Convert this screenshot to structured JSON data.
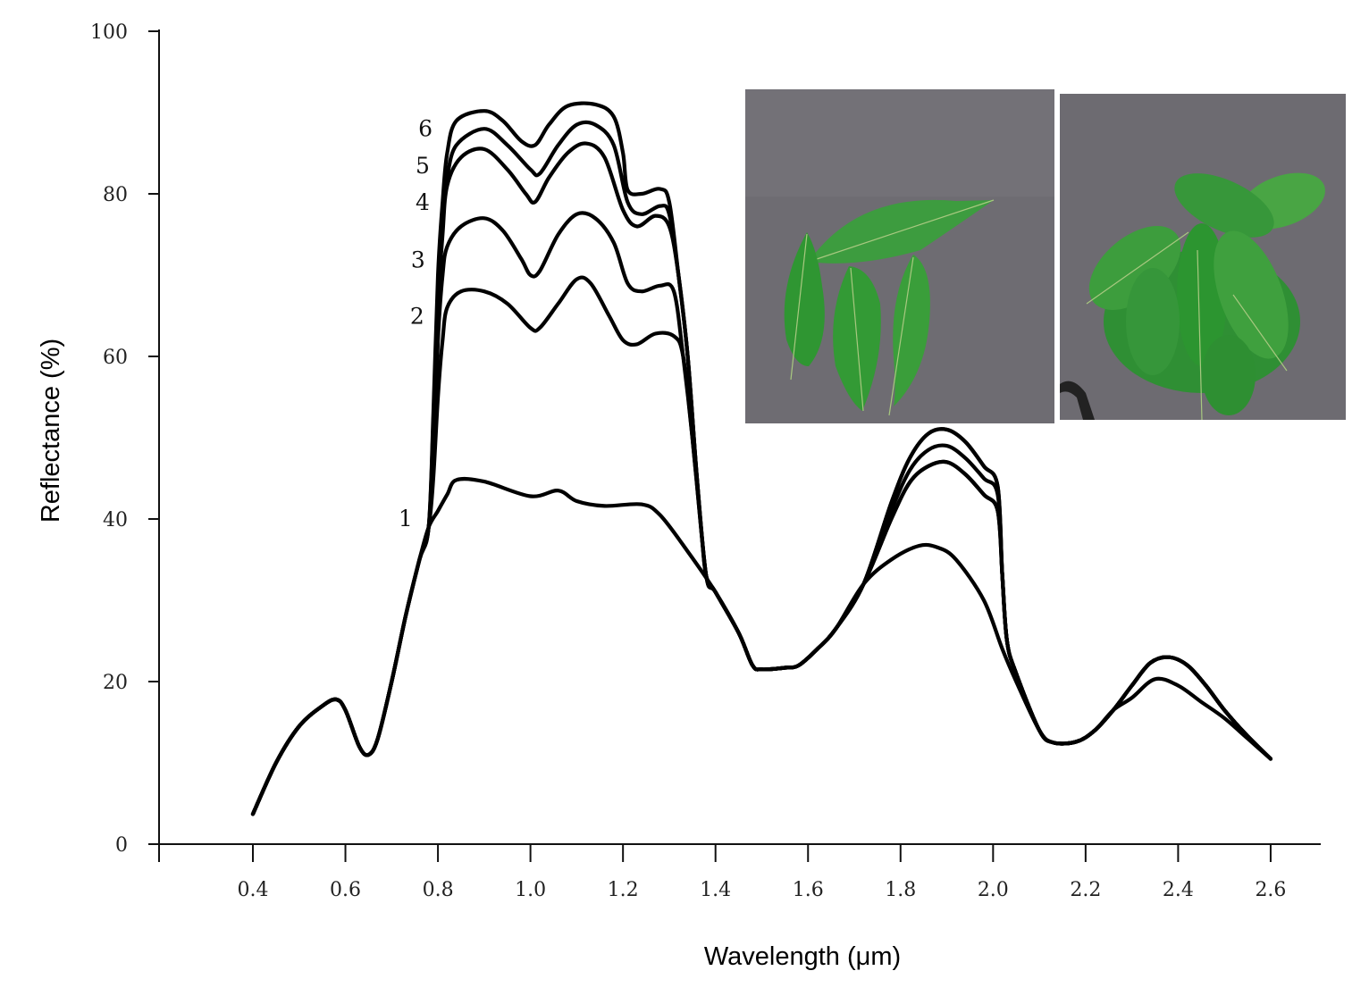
{
  "chart_data": {
    "type": "line",
    "title": "",
    "xlabel": "Wavelength (μm)",
    "ylabel": "Reflectance (%)",
    "xlim": [
      0.2,
      2.7
    ],
    "ylim": [
      0,
      100
    ],
    "x_ticks": [
      0.4,
      0.6,
      0.8,
      1.0,
      1.2,
      1.4,
      1.6,
      1.8,
      2.0,
      2.2,
      2.4,
      2.6
    ],
    "x_tick_labels": [
      "0.4",
      "0.6",
      "0.8",
      "1.0",
      "1.2",
      "1.4",
      "1.6",
      "1.8",
      "2.0",
      "2.2",
      "2.4",
      "2.6"
    ],
    "y_ticks": [
      0,
      20,
      40,
      60,
      80,
      100
    ],
    "y_tick_labels": [
      "0",
      "20",
      "40",
      "60",
      "80",
      "100"
    ],
    "grid": false,
    "legend": "none",
    "line_color": "#000000",
    "segments": {
      "start": [
        [
          0.4,
          3.7
        ],
        [
          0.45,
          10
        ],
        [
          0.5,
          14.5
        ],
        [
          0.55,
          17
        ],
        [
          0.58,
          17.8
        ],
        [
          0.6,
          16.5
        ],
        [
          0.63,
          12
        ],
        [
          0.65,
          11
        ],
        [
          0.67,
          13
        ],
        [
          0.7,
          20
        ],
        [
          0.73,
          28
        ],
        [
          0.76,
          35
        ],
        [
          0.78,
          39
        ]
      ],
      "mid": [
        [
          1.4,
          31
        ],
        [
          1.45,
          26
        ],
        [
          1.48,
          22
        ],
        [
          1.5,
          21.5
        ],
        [
          1.55,
          21.7
        ],
        [
          1.58,
          22
        ],
        [
          1.62,
          24
        ],
        [
          1.66,
          26.5
        ],
        [
          1.72,
          32
        ]
      ],
      "tail_shared": [
        [
          2.1,
          14
        ],
        [
          2.13,
          12.5
        ],
        [
          2.18,
          12.6
        ],
        [
          2.22,
          14
        ],
        [
          2.26,
          16.5
        ]
      ],
      "tail_low": [
        [
          2.3,
          18
        ],
        [
          2.35,
          20.3
        ],
        [
          2.4,
          19.5
        ],
        [
          2.45,
          17.5
        ],
        [
          2.5,
          15.5
        ],
        [
          2.55,
          13
        ],
        [
          2.6,
          10.5
        ]
      ],
      "tail_high": [
        [
          2.3,
          19.5
        ],
        [
          2.34,
          22.3
        ],
        [
          2.38,
          23
        ],
        [
          2.42,
          22
        ],
        [
          2.46,
          19.5
        ],
        [
          2.5,
          16.5
        ],
        [
          2.55,
          13.3
        ],
        [
          2.6,
          10.5
        ]
      ]
    },
    "series": [
      {
        "name": "1",
        "label_at": [
          0.73,
          40.1
        ],
        "tail": "tail_low",
        "nir": [
          [
            0.8,
            41
          ],
          [
            0.82,
            43
          ],
          [
            0.84,
            44.8
          ],
          [
            0.9,
            44.6
          ],
          [
            1.0,
            42.8
          ],
          [
            1.06,
            43.5
          ],
          [
            1.1,
            42.2
          ],
          [
            1.16,
            41.6
          ],
          [
            1.24,
            41.8
          ],
          [
            1.28,
            40.5
          ],
          [
            1.34,
            36
          ]
        ],
        "band2": [
          [
            1.78,
            35
          ],
          [
            1.84,
            36.7
          ],
          [
            1.88,
            36.5
          ],
          [
            1.92,
            35
          ],
          [
            1.98,
            30
          ],
          [
            2.02,
            24
          ],
          [
            2.05,
            20
          ]
        ]
      },
      {
        "name": "2",
        "label_at": [
          0.755,
          65
        ],
        "tail": "tail_high",
        "nir": [
          [
            0.79,
            45
          ],
          [
            0.8,
            55
          ],
          [
            0.81,
            62
          ],
          [
            0.82,
            66
          ],
          [
            0.85,
            68
          ],
          [
            0.9,
            68
          ],
          [
            0.95,
            66.5
          ],
          [
            1.0,
            63.5
          ],
          [
            1.02,
            63.5
          ],
          [
            1.06,
            66.5
          ],
          [
            1.1,
            69.5
          ],
          [
            1.13,
            69
          ],
          [
            1.17,
            65
          ],
          [
            1.2,
            62
          ],
          [
            1.23,
            61.5
          ],
          [
            1.27,
            62.8
          ],
          [
            1.31,
            62.5
          ],
          [
            1.33,
            60
          ],
          [
            1.35,
            50
          ],
          [
            1.37,
            38
          ],
          [
            1.38,
            33
          ]
        ],
        "band2": [
          [
            1.78,
            40
          ],
          [
            1.82,
            44.5
          ],
          [
            1.86,
            46.5
          ],
          [
            1.9,
            47
          ],
          [
            1.94,
            45.5
          ],
          [
            1.98,
            43
          ],
          [
            2.01,
            41
          ],
          [
            2.02,
            33
          ],
          [
            2.03,
            25
          ],
          [
            2.05,
            21
          ]
        ]
      },
      {
        "name": "3",
        "label_at": [
          0.757,
          71.9
        ],
        "tail": "tail_high",
        "nir": [
          [
            0.79,
            48
          ],
          [
            0.8,
            62
          ],
          [
            0.81,
            70
          ],
          [
            0.82,
            73.5
          ],
          [
            0.85,
            76
          ],
          [
            0.9,
            77
          ],
          [
            0.94,
            75.5
          ],
          [
            0.98,
            72
          ],
          [
            1.0,
            70
          ],
          [
            1.02,
            70.5
          ],
          [
            1.06,
            75
          ],
          [
            1.1,
            77.5
          ],
          [
            1.14,
            77
          ],
          [
            1.18,
            74
          ],
          [
            1.21,
            69
          ],
          [
            1.24,
            68
          ],
          [
            1.28,
            68.7
          ],
          [
            1.31,
            68
          ],
          [
            1.33,
            60
          ],
          [
            1.35,
            50
          ],
          [
            1.37,
            38
          ],
          [
            1.38,
            33
          ]
        ],
        "band2": [
          [
            1.78,
            40
          ],
          [
            1.82,
            44.5
          ],
          [
            1.86,
            46.5
          ],
          [
            1.9,
            47
          ],
          [
            1.94,
            45.5
          ],
          [
            1.98,
            43
          ],
          [
            2.01,
            41
          ],
          [
            2.02,
            33
          ],
          [
            2.03,
            25
          ],
          [
            2.05,
            21
          ]
        ]
      },
      {
        "name": "4",
        "label_at": [
          0.767,
          79
        ],
        "tail": "tail_high",
        "nir": [
          [
            0.79,
            50
          ],
          [
            0.8,
            66
          ],
          [
            0.81,
            75
          ],
          [
            0.82,
            81
          ],
          [
            0.85,
            84.5
          ],
          [
            0.9,
            85.5
          ],
          [
            0.95,
            83
          ],
          [
            0.99,
            80
          ],
          [
            1.01,
            79
          ],
          [
            1.04,
            82
          ],
          [
            1.08,
            85
          ],
          [
            1.12,
            86.2
          ],
          [
            1.16,
            84.5
          ],
          [
            1.2,
            78
          ],
          [
            1.23,
            76
          ],
          [
            1.27,
            77.3
          ],
          [
            1.3,
            76
          ],
          [
            1.32,
            70
          ],
          [
            1.34,
            60
          ],
          [
            1.36,
            45
          ],
          [
            1.38,
            33
          ]
        ],
        "band2": [
          [
            1.78,
            41
          ],
          [
            1.82,
            46
          ],
          [
            1.86,
            48.5
          ],
          [
            1.9,
            49
          ],
          [
            1.94,
            47.5
          ],
          [
            1.98,
            45
          ],
          [
            2.01,
            43
          ],
          [
            2.02,
            33
          ],
          [
            2.03,
            25
          ],
          [
            2.05,
            21
          ]
        ]
      },
      {
        "name": "5",
        "label_at": [
          0.767,
          83.5
        ],
        "tail": "tail_high",
        "nir": [
          [
            0.79,
            52
          ],
          [
            0.8,
            68
          ],
          [
            0.81,
            77
          ],
          [
            0.82,
            82
          ],
          [
            0.84,
            86
          ],
          [
            0.9,
            88
          ],
          [
            0.95,
            86
          ],
          [
            1.0,
            83
          ],
          [
            1.02,
            82.5
          ],
          [
            1.06,
            86
          ],
          [
            1.1,
            88.5
          ],
          [
            1.14,
            88.5
          ],
          [
            1.18,
            86
          ],
          [
            1.21,
            79
          ],
          [
            1.24,
            77.5
          ],
          [
            1.28,
            78.5
          ],
          [
            1.3,
            77.5
          ],
          [
            1.32,
            70
          ],
          [
            1.34,
            60
          ],
          [
            1.36,
            45
          ],
          [
            1.38,
            33
          ]
        ],
        "band2": [
          [
            1.78,
            42
          ],
          [
            1.82,
            47.5
          ],
          [
            1.86,
            50.5
          ],
          [
            1.9,
            51
          ],
          [
            1.94,
            49.5
          ],
          [
            1.98,
            46.5
          ],
          [
            2.01,
            44
          ],
          [
            2.02,
            33
          ],
          [
            2.03,
            25
          ],
          [
            2.05,
            21
          ]
        ]
      },
      {
        "name": "6",
        "label_at": [
          0.773,
          88.1
        ],
        "tail": "tail_high",
        "nir": [
          [
            0.79,
            53
          ],
          [
            0.8,
            70
          ],
          [
            0.81,
            79
          ],
          [
            0.82,
            85
          ],
          [
            0.84,
            89
          ],
          [
            0.9,
            90.2
          ],
          [
            0.94,
            89
          ],
          [
            0.98,
            86.5
          ],
          [
            1.01,
            86
          ],
          [
            1.04,
            88.5
          ],
          [
            1.08,
            90.8
          ],
          [
            1.14,
            91
          ],
          [
            1.18,
            89.5
          ],
          [
            1.2,
            85
          ],
          [
            1.21,
            80.5
          ],
          [
            1.24,
            80
          ],
          [
            1.28,
            80.6
          ],
          [
            1.3,
            79
          ],
          [
            1.32,
            70
          ],
          [
            1.34,
            60
          ],
          [
            1.36,
            45
          ],
          [
            1.38,
            33
          ]
        ],
        "band2": [
          [
            1.78,
            42
          ],
          [
            1.82,
            47.5
          ],
          [
            1.86,
            50.5
          ],
          [
            1.9,
            51
          ],
          [
            1.94,
            49.5
          ],
          [
            1.98,
            46.5
          ],
          [
            2.01,
            44
          ],
          [
            2.02,
            33
          ],
          [
            2.03,
            25
          ],
          [
            2.05,
            21
          ]
        ]
      }
    ]
  }
}
